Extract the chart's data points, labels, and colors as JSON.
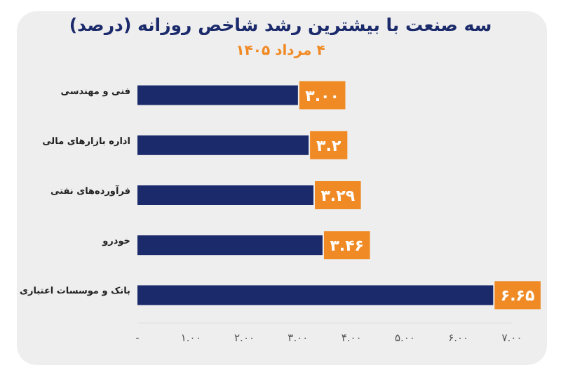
{
  "chart_data": {
    "type": "bar",
    "orientation": "horizontal",
    "title": "سه صنعت با بیشترین رشد شاخص روزانه (درصد)",
    "subtitle": "۴ مرداد ۱۴۰۵",
    "categories": [
      "فنی و مهندسی",
      "اداره بازارهای مالی",
      "فرآورده‌های نفتی",
      "خودرو",
      "بانک و موسسات اعتباری"
    ],
    "values": [
      3.0,
      3.2,
      3.29,
      3.46,
      6.65
    ],
    "value_labels": [
      "۳.۰۰",
      "۳.۲",
      "۳.۲۹",
      "۳.۴۶",
      "۶.۶۵"
    ],
    "color": "#1b2a6b",
    "xlim": [
      0,
      7
    ],
    "xticks": [
      {
        "value": 0,
        "label": "-"
      },
      {
        "value": 1,
        "label": "۱.۰۰"
      },
      {
        "value": 2,
        "label": "۲.۰۰"
      },
      {
        "value": 3,
        "label": "۳.۰۰"
      },
      {
        "value": 4,
        "label": "۴.۰۰"
      },
      {
        "value": 5,
        "label": "۵.۰۰"
      },
      {
        "value": 6,
        "label": "۶.۰۰"
      },
      {
        "value": 7,
        "label": "۷.۰۰"
      }
    ],
    "grid": false
  }
}
